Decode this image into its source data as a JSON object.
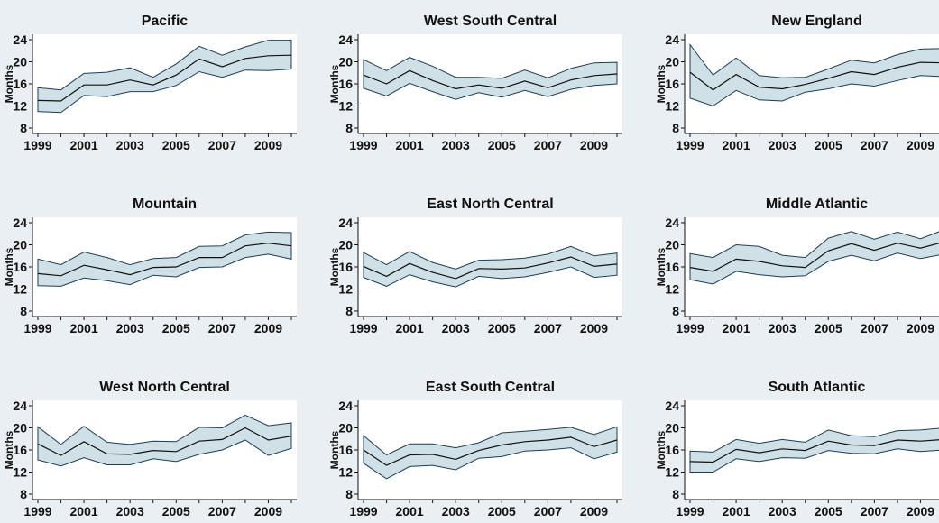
{
  "colors": {
    "background": "#e9eff2",
    "plot_background": "#ffffff",
    "band_fill": "#cfe0e7",
    "band_edge": "#1d3d55",
    "mean_line": "#111111"
  },
  "chart_data": [
    {
      "type": "line",
      "title": "Pacific",
      "ylabel": "Months",
      "x": [
        1999,
        2000,
        2001,
        2002,
        2003,
        2004,
        2005,
        2006,
        2007,
        2008,
        2009,
        2010
      ],
      "x_tick_values": [
        1999,
        2001,
        2003,
        2005,
        2007,
        2009
      ],
      "x_tick_labels": [
        "1999",
        "2001",
        "2003",
        "2005",
        "2007",
        "2009"
      ],
      "y_tick_labels": [
        "8",
        "12",
        "16",
        "20",
        "24"
      ],
      "ylim": [
        8,
        24
      ],
      "series": [
        {
          "role": "upper",
          "values": [
            15.3,
            14.9,
            17.9,
            18.1,
            18.9,
            17.2,
            19.6,
            22.8,
            21.2,
            22.7,
            23.9,
            23.9
          ]
        },
        {
          "role": "mean",
          "values": [
            13.0,
            12.9,
            15.8,
            15.8,
            16.7,
            15.8,
            17.6,
            20.5,
            19.1,
            20.6,
            21.1,
            21.2
          ]
        },
        {
          "role": "lower",
          "values": [
            11.0,
            10.8,
            13.9,
            13.7,
            14.6,
            14.6,
            15.7,
            18.2,
            17.2,
            18.5,
            18.4,
            18.7
          ]
        }
      ],
      "grid": false,
      "legend": "none"
    },
    {
      "type": "line",
      "title": "West South Central",
      "ylabel": "Months",
      "x": [
        1999,
        2000,
        2001,
        2002,
        2003,
        2004,
        2005,
        2006,
        2007,
        2008,
        2009,
        2010
      ],
      "x_tick_values": [
        1999,
        2001,
        2003,
        2005,
        2007,
        2009
      ],
      "x_tick_labels": [
        "1999",
        "2001",
        "2003",
        "2005",
        "2007",
        "2009"
      ],
      "y_tick_labels": [
        "8",
        "12",
        "16",
        "20",
        "24"
      ],
      "ylim": [
        8,
        24
      ],
      "series": [
        {
          "role": "upper",
          "values": [
            20.4,
            18.4,
            20.8,
            19.2,
            17.2,
            17.2,
            17.0,
            18.5,
            17.1,
            18.8,
            19.8,
            19.9
          ]
        },
        {
          "role": "mean",
          "values": [
            17.6,
            16.0,
            18.4,
            16.6,
            15.1,
            15.8,
            15.2,
            16.5,
            15.3,
            16.7,
            17.5,
            17.8
          ]
        },
        {
          "role": "lower",
          "values": [
            15.2,
            13.8,
            16.1,
            14.6,
            13.2,
            14.4,
            13.6,
            14.8,
            13.7,
            15.0,
            15.7,
            16.0
          ]
        }
      ],
      "grid": false,
      "legend": "none"
    },
    {
      "type": "line",
      "title": "New England",
      "ylabel": "Months",
      "x": [
        1999,
        2000,
        2001,
        2002,
        2003,
        2004,
        2005,
        2006,
        2007,
        2008,
        2009,
        2010
      ],
      "x_tick_values": [
        1999,
        2001,
        2003,
        2005,
        2007,
        2009
      ],
      "x_tick_labels": [
        "1999",
        "2001",
        "2003",
        "2005",
        "2007",
        "2009"
      ],
      "y_tick_labels": [
        "8",
        "12",
        "16",
        "20",
        "24"
      ],
      "ylim": [
        8,
        24
      ],
      "series": [
        {
          "role": "upper",
          "values": [
            23.1,
            17.6,
            20.7,
            17.5,
            17.1,
            17.2,
            18.7,
            20.3,
            19.8,
            21.3,
            22.3,
            22.4
          ]
        },
        {
          "role": "mean",
          "values": [
            18.1,
            14.9,
            17.7,
            15.4,
            15.1,
            15.9,
            17.0,
            18.2,
            17.7,
            19.0,
            19.9,
            19.8
          ]
        },
        {
          "role": "lower",
          "values": [
            13.4,
            12.0,
            14.8,
            13.1,
            12.9,
            14.5,
            15.1,
            16.0,
            15.6,
            16.6,
            17.5,
            17.3
          ]
        }
      ],
      "grid": false,
      "legend": "none"
    },
    {
      "type": "line",
      "title": "Mountain",
      "ylabel": "Months",
      "x": [
        1999,
        2000,
        2001,
        2002,
        2003,
        2004,
        2005,
        2006,
        2007,
        2008,
        2009,
        2010
      ],
      "x_tick_values": [
        1999,
        2001,
        2003,
        2005,
        2007,
        2009
      ],
      "x_tick_labels": [
        "1999",
        "2001",
        "2003",
        "2005",
        "2007",
        "2009"
      ],
      "y_tick_labels": [
        "8",
        "12",
        "16",
        "20",
        "24"
      ],
      "ylim": [
        8,
        24
      ],
      "series": [
        {
          "role": "upper",
          "values": [
            17.4,
            16.4,
            18.7,
            17.7,
            16.4,
            17.5,
            17.7,
            19.7,
            19.8,
            21.8,
            22.3,
            22.2
          ]
        },
        {
          "role": "mean",
          "values": [
            14.8,
            14.4,
            16.3,
            15.5,
            14.6,
            15.9,
            16.0,
            17.7,
            17.7,
            19.8,
            20.3,
            19.8
          ]
        },
        {
          "role": "lower",
          "values": [
            12.6,
            12.5,
            14.0,
            13.5,
            12.8,
            14.5,
            14.2,
            15.9,
            16.0,
            17.7,
            18.3,
            17.4
          ]
        }
      ],
      "grid": false,
      "legend": "none"
    },
    {
      "type": "line",
      "title": "East North Central",
      "ylabel": "Months",
      "x": [
        1999,
        2000,
        2001,
        2002,
        2003,
        2004,
        2005,
        2006,
        2007,
        2008,
        2009,
        2010
      ],
      "x_tick_values": [
        1999,
        2001,
        2003,
        2005,
        2007,
        2009
      ],
      "x_tick_labels": [
        "1999",
        "2001",
        "2003",
        "2005",
        "2007",
        "2009"
      ],
      "y_tick_labels": [
        "8",
        "12",
        "16",
        "20",
        "24"
      ],
      "ylim": [
        8,
        24
      ],
      "series": [
        {
          "role": "upper",
          "values": [
            18.6,
            16.4,
            18.8,
            16.8,
            15.6,
            17.2,
            17.3,
            17.6,
            18.3,
            19.7,
            18.0,
            18.5
          ]
        },
        {
          "role": "mean",
          "values": [
            16.1,
            14.3,
            16.6,
            15.0,
            13.9,
            15.7,
            15.6,
            15.8,
            16.7,
            17.8,
            16.1,
            16.5
          ]
        },
        {
          "role": "lower",
          "values": [
            14.1,
            12.5,
            14.6,
            13.3,
            12.4,
            14.3,
            13.9,
            14.2,
            15.0,
            16.0,
            14.1,
            14.5
          ]
        }
      ],
      "grid": false,
      "legend": "none"
    },
    {
      "type": "line",
      "title": "Middle Atlantic",
      "ylabel": "Months",
      "x": [
        1999,
        2000,
        2001,
        2002,
        2003,
        2004,
        2005,
        2006,
        2007,
        2008,
        2009,
        2010
      ],
      "x_tick_values": [
        1999,
        2001,
        2003,
        2005,
        2007,
        2009
      ],
      "x_tick_labels": [
        "1999",
        "2001",
        "2003",
        "2005",
        "2007",
        "2009"
      ],
      "y_tick_labels": [
        "8",
        "12",
        "16",
        "20",
        "24"
      ],
      "ylim": [
        8,
        24
      ],
      "series": [
        {
          "role": "upper",
          "values": [
            18.4,
            17.7,
            20.0,
            19.7,
            18.1,
            17.7,
            21.2,
            22.4,
            21.0,
            22.3,
            21.1,
            22.7
          ]
        },
        {
          "role": "mean",
          "values": [
            15.9,
            15.2,
            17.4,
            17.0,
            16.2,
            15.9,
            18.9,
            20.2,
            19.0,
            20.3,
            19.4,
            20.5
          ]
        },
        {
          "role": "lower",
          "values": [
            13.7,
            12.9,
            15.2,
            14.6,
            14.2,
            14.4,
            17.0,
            18.1,
            17.1,
            18.5,
            17.5,
            18.3
          ]
        }
      ],
      "grid": false,
      "legend": "none"
    },
    {
      "type": "line",
      "title": "West North Central",
      "ylabel": "Months",
      "x": [
        1999,
        2000,
        2001,
        2002,
        2003,
        2004,
        2005,
        2006,
        2007,
        2008,
        2009,
        2010
      ],
      "x_tick_values": [
        1999,
        2001,
        2003,
        2005,
        2007,
        2009
      ],
      "x_tick_labels": [
        "1999",
        "2001",
        "2003",
        "2005",
        "2007",
        "2009"
      ],
      "y_tick_labels": [
        "8",
        "12",
        "16",
        "20",
        "24"
      ],
      "ylim": [
        8,
        24
      ],
      "series": [
        {
          "role": "upper",
          "values": [
            20.2,
            17.0,
            20.3,
            17.4,
            17.0,
            17.6,
            17.5,
            20.1,
            20.0,
            22.3,
            20.4,
            20.9
          ]
        },
        {
          "role": "mean",
          "values": [
            17.1,
            15.0,
            17.5,
            15.3,
            15.2,
            15.9,
            15.7,
            17.6,
            17.9,
            20.0,
            17.8,
            18.5
          ]
        },
        {
          "role": "lower",
          "values": [
            14.2,
            13.1,
            14.6,
            13.3,
            13.3,
            14.4,
            13.9,
            15.2,
            16.0,
            17.8,
            15.0,
            16.3
          ]
        }
      ],
      "grid": false,
      "legend": "none"
    },
    {
      "type": "line",
      "title": "East South Central",
      "ylabel": "Months",
      "x": [
        1999,
        2000,
        2001,
        2002,
        2003,
        2004,
        2005,
        2006,
        2007,
        2008,
        2009,
        2010
      ],
      "x_tick_values": [
        1999,
        2001,
        2003,
        2005,
        2007,
        2009
      ],
      "x_tick_labels": [
        "1999",
        "2001",
        "2003",
        "2005",
        "2007",
        "2009"
      ],
      "y_tick_labels": [
        "8",
        "12",
        "16",
        "20",
        "24"
      ],
      "ylim": [
        8,
        24
      ],
      "series": [
        {
          "role": "upper",
          "values": [
            18.6,
            15.1,
            17.1,
            17.1,
            16.4,
            17.3,
            19.1,
            19.4,
            19.7,
            20.1,
            18.8,
            20.2
          ]
        },
        {
          "role": "mean",
          "values": [
            16.0,
            13.2,
            15.1,
            15.2,
            14.3,
            15.9,
            16.9,
            17.5,
            17.8,
            18.3,
            16.6,
            17.8
          ]
        },
        {
          "role": "lower",
          "values": [
            13.6,
            10.8,
            13.0,
            13.2,
            12.4,
            14.5,
            14.8,
            15.8,
            16.0,
            16.4,
            14.4,
            15.6
          ]
        }
      ],
      "grid": false,
      "legend": "none"
    },
    {
      "type": "line",
      "title": "South Atlantic",
      "ylabel": "Months",
      "x": [
        1999,
        2000,
        2001,
        2002,
        2003,
        2004,
        2005,
        2006,
        2007,
        2008,
        2009,
        2010
      ],
      "x_tick_values": [
        1999,
        2001,
        2003,
        2005,
        2007,
        2009
      ],
      "x_tick_labels": [
        "1999",
        "2001",
        "2003",
        "2005",
        "2007",
        "2009"
      ],
      "y_tick_labels": [
        "8",
        "12",
        "16",
        "20",
        "24"
      ],
      "ylim": [
        8,
        24
      ],
      "series": [
        {
          "role": "upper",
          "values": [
            15.8,
            15.6,
            17.9,
            17.2,
            17.9,
            17.4,
            19.6,
            18.6,
            18.4,
            19.5,
            19.6,
            20.0
          ]
        },
        {
          "role": "mean",
          "values": [
            13.9,
            13.8,
            16.1,
            15.5,
            16.2,
            15.9,
            17.6,
            16.9,
            16.8,
            17.8,
            17.6,
            17.9
          ]
        },
        {
          "role": "lower",
          "values": [
            12.0,
            12.0,
            14.4,
            13.9,
            14.6,
            14.5,
            15.9,
            15.4,
            15.3,
            16.2,
            15.7,
            16.0
          ]
        }
      ],
      "grid": false,
      "legend": "none"
    }
  ]
}
